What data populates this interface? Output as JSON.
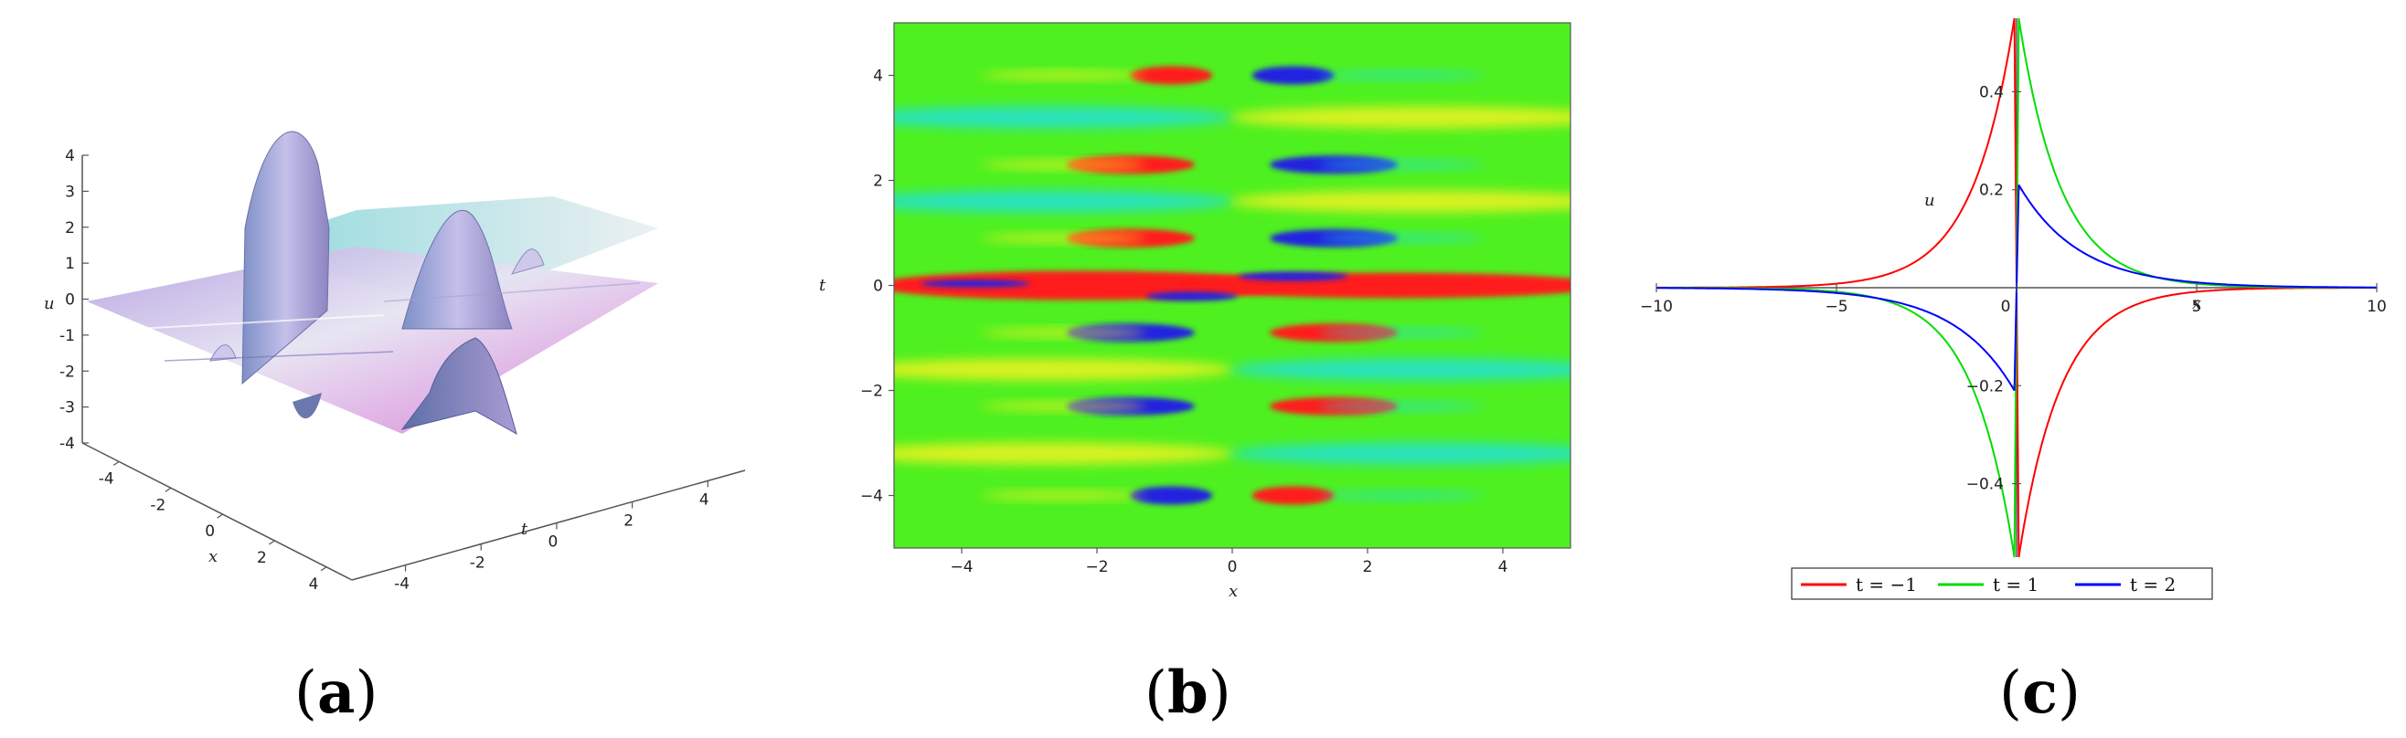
{
  "panel_labels": {
    "a": "a",
    "b": "b",
    "c": "c"
  },
  "chart_data": [
    {
      "panel": "a",
      "type": "surface",
      "zlabel": "u",
      "xlabel": "x",
      "ylabel": "t",
      "z_ticks": [
        "4",
        "3",
        "2",
        "1",
        "0",
        "-1",
        "-2",
        "-3",
        "-4"
      ],
      "x_ticks": [
        "-4",
        "-2",
        "0",
        "2",
        "4"
      ],
      "t_ticks": [
        "-4",
        "-2",
        "0",
        "2",
        "4"
      ],
      "xlim": [
        -5,
        5
      ],
      "tlim": [
        -5,
        5
      ],
      "zlim": [
        -4,
        4
      ],
      "colors": {
        "surface_high": "#9ec9d4",
        "surface_mid": "#c6b6e3",
        "surface_low": "#d68bd8",
        "axis": "#555555"
      }
    },
    {
      "panel": "b",
      "type": "heatmap",
      "xlabel": "x",
      "ylabel": "t",
      "x_ticks": [
        "-4",
        "-2",
        "0",
        "2",
        "4"
      ],
      "y_ticks": [
        "4",
        "2",
        "0",
        "-2",
        "-4"
      ],
      "xlim": [
        -5,
        5
      ],
      "ylim": [
        -5,
        5
      ],
      "colors": {
        "background": "#4ef020",
        "high": "#ff1a1a",
        "mid_high": "#f2f224",
        "mid_low": "#22e0d8",
        "low": "#2424e0"
      },
      "bands": [
        {
          "t": 4.0,
          "left": "red",
          "right": "blue"
        },
        {
          "t": 3.2,
          "left": "cyan",
          "right": "yellow"
        },
        {
          "t": 2.3,
          "left": "red",
          "right": "blue"
        },
        {
          "t": 1.6,
          "left": "cyan",
          "right": "yellow"
        },
        {
          "t": 0.9,
          "left": "red",
          "right": "blue"
        },
        {
          "t": 0.0,
          "left": "red",
          "right": "red"
        },
        {
          "t": -0.9,
          "left": "blue",
          "right": "red"
        },
        {
          "t": -1.6,
          "left": "yellow",
          "right": "cyan"
        },
        {
          "t": -2.3,
          "left": "blue",
          "right": "red"
        },
        {
          "t": -3.2,
          "left": "yellow",
          "right": "cyan"
        },
        {
          "t": -4.0,
          "left": "blue",
          "right": "red"
        }
      ]
    },
    {
      "panel": "c",
      "type": "line",
      "xlabel": "x",
      "ylabel": "u",
      "xlim": [
        -10,
        10
      ],
      "ylim": [
        -0.55,
        0.55
      ],
      "x_ticks": [
        "-10",
        "-5",
        "0",
        "5",
        "10"
      ],
      "y_ticks": [
        "0.4",
        "0.2",
        "-0.2",
        "-0.4"
      ],
      "legend_position": "bottom",
      "series": [
        {
          "name": "t = −1",
          "color": "#ff0000",
          "amp": 0.55,
          "sign": 1,
          "k": 0.85
        },
        {
          "name": "t = 1",
          "color": "#00dd00",
          "amp": 0.55,
          "sign": -1,
          "k": 0.85
        },
        {
          "name": "t = 2",
          "color": "#0000ff",
          "amp": 0.21,
          "sign": -1,
          "k": 0.6
        }
      ]
    }
  ]
}
